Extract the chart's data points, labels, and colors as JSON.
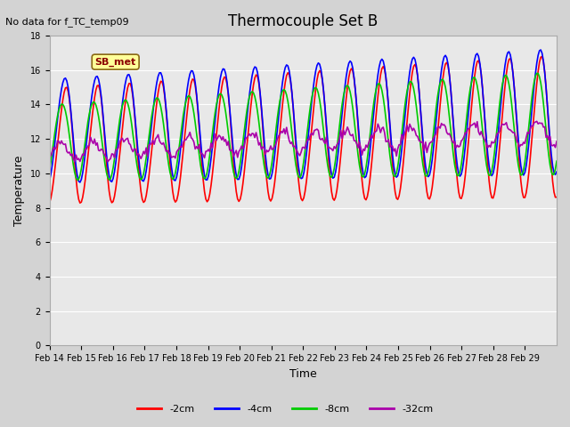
{
  "title": "Thermocouple Set B",
  "xlabel": "Time",
  "ylabel": "Temperature",
  "no_data_text": "No data for f_TC_temp09",
  "legend_label_text": "SB_met",
  "ylim": [
    0,
    18
  ],
  "yticks": [
    0,
    2,
    4,
    6,
    8,
    10,
    12,
    14,
    16,
    18
  ],
  "date_labels": [
    "Feb 14",
    "Feb 15",
    "Feb 16",
    "Feb 17",
    "Feb 18",
    "Feb 19",
    "Feb 20",
    "Feb 21",
    "Feb 22",
    "Feb 23",
    "Feb 24",
    "Feb 25",
    "Feb 26",
    "Feb 27",
    "Feb 28",
    "Feb 29"
  ],
  "line_colors": [
    "#ff0000",
    "#0000ff",
    "#00cc00",
    "#aa00aa"
  ],
  "line_labels": [
    "-2cm",
    "-4cm",
    "-8cm",
    "-32cm"
  ],
  "bg_color": "#d3d3d3",
  "plot_bg_color": "#e8e8e8",
  "legend_box_color": "#ffff99",
  "legend_text_color": "#8b0000"
}
